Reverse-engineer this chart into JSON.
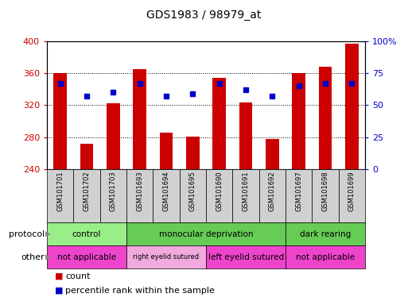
{
  "title": "GDS1983 / 98979_at",
  "samples": [
    "GSM101701",
    "GSM101702",
    "GSM101703",
    "GSM101693",
    "GSM101694",
    "GSM101695",
    "GSM101690",
    "GSM101691",
    "GSM101692",
    "GSM101697",
    "GSM101698",
    "GSM101699"
  ],
  "bar_values": [
    360,
    272,
    322,
    365,
    286,
    281,
    354,
    323,
    278,
    360,
    368,
    397
  ],
  "percentile_values": [
    67,
    57,
    60,
    67,
    57,
    59,
    67,
    62,
    57,
    65,
    67,
    67
  ],
  "ymin": 240,
  "ymax": 400,
  "yticks": [
    240,
    280,
    320,
    360,
    400
  ],
  "right_yticks": [
    0,
    25,
    50,
    75,
    100
  ],
  "bar_color": "#cc0000",
  "percentile_color": "#0000cc",
  "protocol_groups": [
    {
      "label": "control",
      "start": 0,
      "end": 3,
      "color": "#99ee88"
    },
    {
      "label": "monocular deprivation",
      "start": 3,
      "end": 9,
      "color": "#66cc55"
    },
    {
      "label": "dark rearing",
      "start": 9,
      "end": 12,
      "color": "#66cc55"
    }
  ],
  "other_groups": [
    {
      "label": "not applicable",
      "start": 0,
      "end": 3,
      "color": "#ee44cc"
    },
    {
      "label": "right eyelid sutured",
      "start": 3,
      "end": 6,
      "color": "#f0aadd"
    },
    {
      "label": "left eyelid sutured",
      "start": 6,
      "end": 9,
      "color": "#ee44cc"
    },
    {
      "label": "not applicable",
      "start": 9,
      "end": 12,
      "color": "#ee44cc"
    }
  ],
  "protocol_label": "protocol",
  "other_label": "other",
  "legend_count_label": "count",
  "legend_percentile_label": "percentile rank within the sample",
  "tick_color_left": "#cc0000",
  "tick_color_right": "#0000cc",
  "sample_box_color": "#d0d0d0",
  "grid_yticks": [
    280,
    320,
    360
  ]
}
